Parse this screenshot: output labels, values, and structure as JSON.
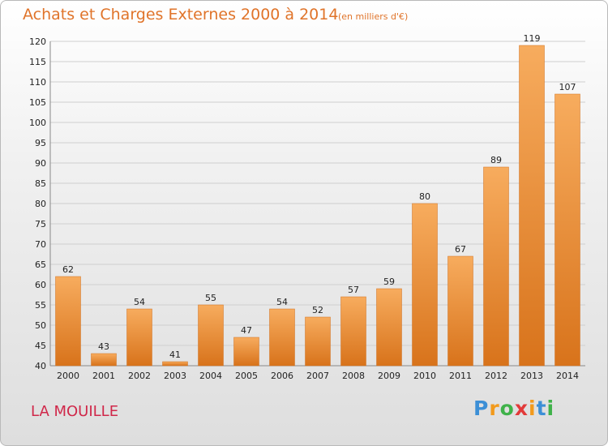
{
  "chart_data": {
    "type": "bar",
    "title": "Achats et Charges Externes 2000 à 2014",
    "subtitle": "(en milliers d'€)",
    "categories": [
      "2000",
      "2001",
      "2002",
      "2003",
      "2004",
      "2005",
      "2006",
      "2007",
      "2008",
      "2009",
      "2010",
      "2011",
      "2012",
      "2013",
      "2014"
    ],
    "values": [
      62,
      43,
      54,
      41,
      55,
      47,
      54,
      52,
      57,
      59,
      80,
      67,
      89,
      119,
      107
    ],
    "ylim": [
      40,
      120
    ],
    "yticks": [
      40,
      45,
      50,
      55,
      60,
      65,
      70,
      75,
      80,
      85,
      90,
      95,
      100,
      105,
      110,
      115,
      120
    ],
    "grid": true,
    "colors": {
      "bar": "#f0902e",
      "bar_light": "#f7ac5e",
      "bar_dark": "#d8731b",
      "title": "#e0742a"
    }
  },
  "footer": {
    "commune": "LA MOUILLE",
    "logo": [
      "P",
      "r",
      "o",
      "x",
      "i",
      "t",
      "i"
    ],
    "logo_colors": [
      "#3c8fd6",
      "#f29a1c",
      "#3fb24a",
      "#e23a3a",
      "#f29a1c",
      "#3c8fd6",
      "#3fb24a"
    ]
  }
}
